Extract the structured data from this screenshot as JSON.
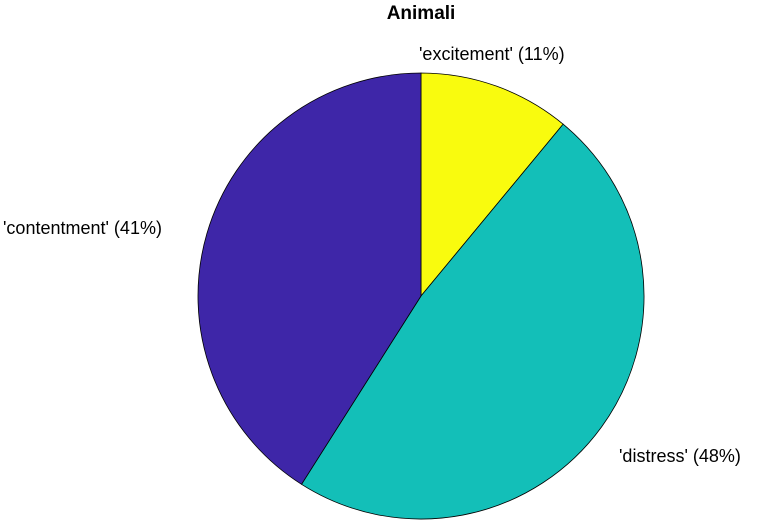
{
  "chart_data": {
    "type": "pie",
    "title": "Animali",
    "slices": [
      {
        "label": "'excitement' (11%)",
        "category": "excitement",
        "value": 11,
        "color": "#f9fb0e"
      },
      {
        "label": "'distress' (48%)",
        "category": "distress",
        "value": 48,
        "color": "#13bfb8"
      },
      {
        "label": "'contentment' (41%)",
        "category": "contentment",
        "value": 41,
        "color": "#3e26a8"
      }
    ],
    "start": "top",
    "direction": "clockwise",
    "legend": "none"
  }
}
